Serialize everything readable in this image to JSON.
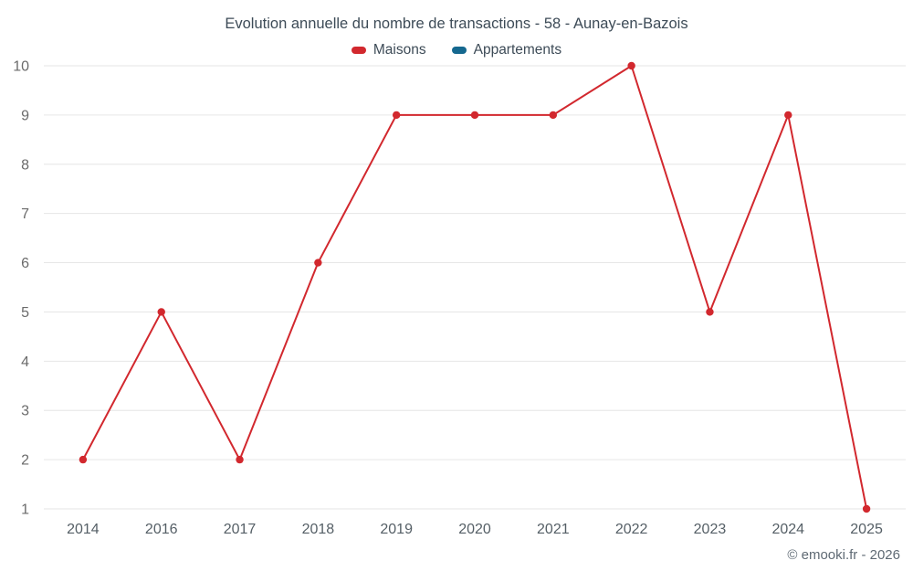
{
  "chart_data": {
    "type": "line",
    "title": "Evolution annuelle du nombre de transactions - 58 - Aunay-en-Bazois",
    "categories": [
      "2014",
      "2016",
      "2017",
      "2018",
      "2019",
      "2020",
      "2021",
      "2022",
      "2023",
      "2024",
      "2025"
    ],
    "series": [
      {
        "name": "Maisons",
        "color": "#d2282e",
        "values": [
          2,
          5,
          2,
          6,
          9,
          9,
          9,
          10,
          5,
          9,
          1
        ]
      },
      {
        "name": "Appartements",
        "color": "#15688f",
        "values": []
      }
    ],
    "ylim": [
      1,
      10
    ],
    "yticks": [
      1,
      2,
      3,
      4,
      5,
      6,
      7,
      8,
      9,
      10
    ],
    "grid": true,
    "legend_position": "top",
    "xlabel": "",
    "ylabel": ""
  },
  "footer": {
    "copyright": "© emooki.fr - 2026"
  },
  "colors": {
    "grid": "#e6e6e6",
    "y_tick_label": "#6b6b6b",
    "x_tick_label": "#555f66",
    "title": "#3d4b57"
  }
}
